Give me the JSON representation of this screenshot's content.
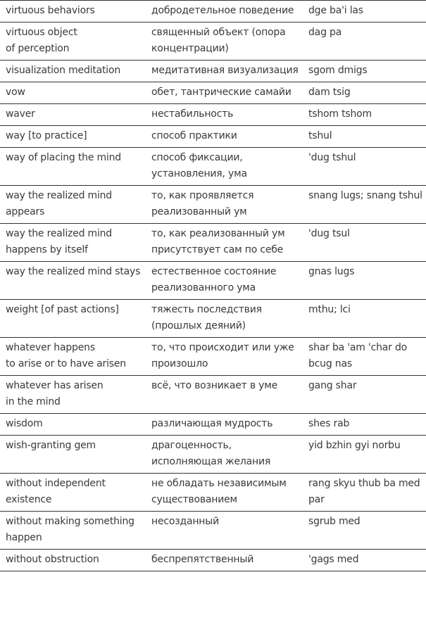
{
  "glossary": {
    "rows": [
      {
        "english": "virtuous behaviors",
        "russian": "добродетельное поведение",
        "tibetan": "dge ba'i las"
      },
      {
        "english": "virtuous object of perception",
        "russian": "священный объект (опора концентрации)",
        "tibetan": "dag pa"
      },
      {
        "english": "visualization meditation",
        "russian": "медитативная визуализация",
        "tibetan": "sgom dmigs"
      },
      {
        "english": "vow",
        "russian": "обет, тантрические самайи",
        "tibetan": "dam tsig"
      },
      {
        "english": "waver",
        "russian": "нестабильность",
        "tibetan": "tshom tshom"
      },
      {
        "english": "way [to practice]",
        "russian": "способ практики",
        "tibetan": "tshul"
      },
      {
        "english": "way of placing the mind",
        "russian": "способ фиксации, установления, ума",
        "tibetan": "'dug tshul"
      },
      {
        "english": "way the realized mind appears",
        "russian": "то, как проявляется реализованный ум",
        "tibetan": "snang lugs; snang tshul"
      },
      {
        "english": "way the realized mind happens by itself",
        "russian": "то, как реализованный ум присутствует сам по себе",
        "tibetan": "'dug tsul"
      },
      {
        "english": "way the realized mind stays",
        "russian": "естественное состояние реализованного ума",
        "tibetan": "gnas lugs"
      },
      {
        "english": "weight [of past actions]",
        "russian": "тяжесть последствия (прошлых деяний)",
        "tibetan": "mthu; lci"
      },
      {
        "english": "whatever happens to arise or to have arisen",
        "russian": "то, что происходит или уже произошло",
        "tibetan": "shar ba 'am 'char do bcug nas"
      },
      {
        "english": "whatever has arisen in the mind",
        "russian": "всё, что возникает в уме",
        "tibetan": "gang shar"
      },
      {
        "english": "wisdom",
        "russian": "различающая мудрость",
        "tibetan": "shes rab"
      },
      {
        "english": "wish-granting gem",
        "russian": "драгоценность, исполняющая желания",
        "tibetan": "yid bzhin gyi norbu"
      },
      {
        "english": "without independent existence",
        "russian": "не обладать независимым существованием",
        "tibetan": "rang skyu thub ba med par"
      },
      {
        "english": "without making something happen",
        "russian": "несозданный",
        "tibetan": "sgrub med"
      },
      {
        "english": "without obstruction",
        "russian": "беспрепятственный",
        "tibetan": "'gags med"
      }
    ]
  }
}
